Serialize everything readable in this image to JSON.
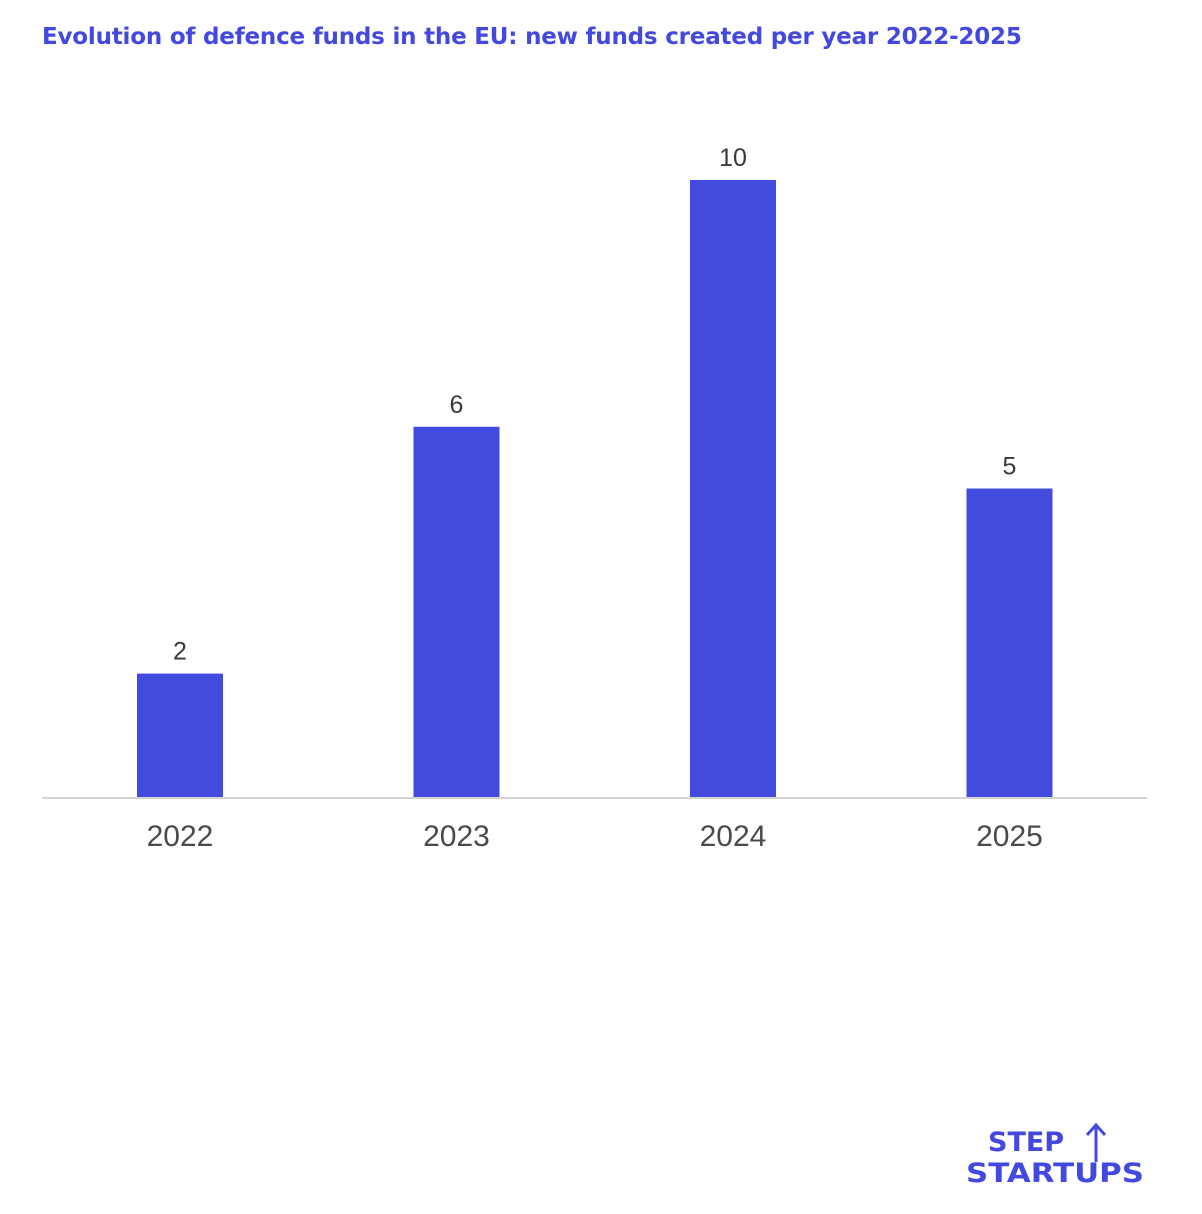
{
  "title": "Evolution of defence funds in the EU: new funds created per year 2022-2025",
  "colors": {
    "bar": "#434bdf",
    "title": "#4349e0",
    "axis": "#d4d4d4",
    "logo": "#4349e0"
  },
  "logo": {
    "line1": "STEP",
    "line2": "STARTUPS",
    "icon": "up-arrow-icon"
  },
  "chart_data": {
    "type": "bar",
    "title": "Evolution of defence funds in the EU: new funds created per year 2022-2025",
    "categories": [
      "2022",
      "2023",
      "2024",
      "2025"
    ],
    "values": [
      2,
      6,
      10,
      5
    ],
    "xlabel": "",
    "ylabel": "",
    "ylim": [
      0,
      10
    ],
    "grid": false,
    "data_labels": true
  }
}
